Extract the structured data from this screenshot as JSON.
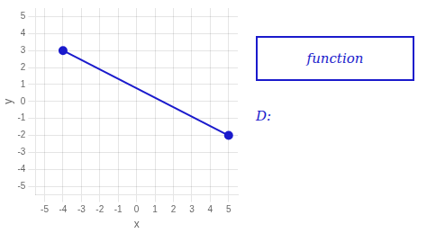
{
  "chart_data": {
    "type": "line",
    "x": [
      -4,
      5
    ],
    "values": [
      3,
      -2
    ],
    "color": "#1a1acc",
    "marker": "circle",
    "xlim": [
      -5.5,
      5.5
    ],
    "ylim": [
      -5.5,
      5.5
    ],
    "xticks": [
      -5,
      -4,
      -3,
      -2,
      -1,
      0,
      1,
      2,
      3,
      4,
      5
    ],
    "yticks": [
      -5,
      -4,
      -3,
      -2,
      -1,
      0,
      1,
      2,
      3,
      4,
      5
    ],
    "xlabel": "x",
    "ylabel": "y",
    "grid": true,
    "annotations": [
      "function",
      "D:"
    ]
  }
}
